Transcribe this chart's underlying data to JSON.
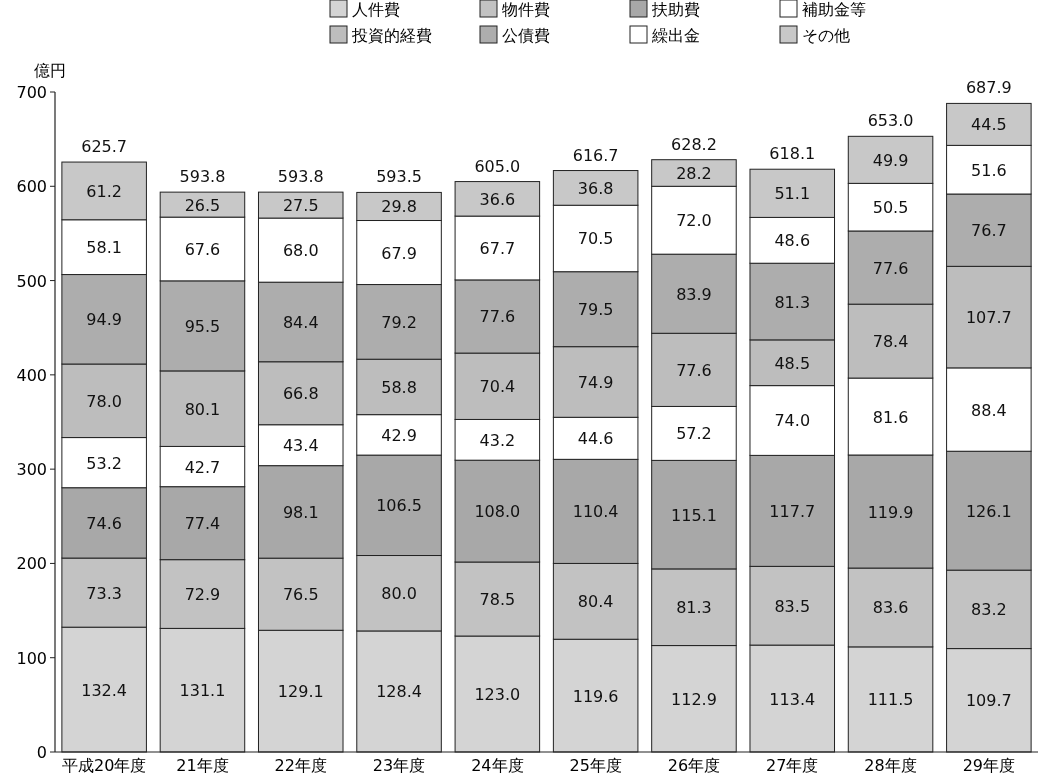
{
  "chart_data": {
    "type": "bar",
    "stacked": true,
    "ylabel": "億円",
    "categories": [
      "平成20年度",
      "21年度",
      "22年度",
      "23年度",
      "24年度",
      "25年度",
      "26年度",
      "27年度",
      "28年度",
      "29年度"
    ],
    "series": [
      {
        "name": "人件費",
        "color": "#d4d4d4",
        "values": [
          132.4,
          131.1,
          129.1,
          128.4,
          123.0,
          119.6,
          112.9,
          113.4,
          111.5,
          109.7
        ],
        "value_labels": [
          "132.4",
          "131.1",
          "129.1",
          "128.4",
          "123.0",
          "119.6",
          "112.9",
          "113.4",
          "111.5",
          "109.7"
        ]
      },
      {
        "name": "物件費",
        "color": "#c2c2c2",
        "values": [
          73.3,
          72.9,
          76.5,
          80.0,
          78.5,
          80.4,
          81.3,
          83.5,
          83.6,
          83.2
        ],
        "value_labels": [
          "73.3",
          "72.9",
          "76.5",
          "80.0",
          "78.5",
          "80.4",
          "81.3",
          "83.5",
          "83.6",
          "83.2"
        ]
      },
      {
        "name": "扶助費",
        "color": "#a8a8a8",
        "values": [
          74.6,
          77.4,
          98.1,
          106.5,
          108.0,
          110.4,
          115.1,
          117.7,
          119.9,
          126.1
        ],
        "value_labels": [
          "74.6",
          "77.4",
          "98.1",
          "106.5",
          "108.0",
          "110.4",
          "115.1",
          "117.7",
          "119.9",
          "126.1"
        ]
      },
      {
        "name": "補助金等",
        "color": "#ffffff",
        "values": [
          53.2,
          42.7,
          43.4,
          42.9,
          43.2,
          44.6,
          57.2,
          74.0,
          81.6,
          88.4
        ],
        "value_labels": [
          "53.2",
          "42.7",
          "43.4",
          "42.9",
          "43.2",
          "44.6",
          "57.2",
          "74.0",
          "81.6",
          "88.4"
        ]
      },
      {
        "name": "投資的経費",
        "color": "#bdbdbd",
        "values": [
          78.0,
          80.1,
          66.8,
          58.8,
          70.4,
          74.9,
          77.6,
          48.5,
          78.4,
          107.7
        ],
        "value_labels": [
          "78.0",
          "80.1",
          "66.8",
          "58.8",
          "70.4",
          "74.9",
          "77.6",
          "48.5",
          "78.4",
          "107.7"
        ]
      },
      {
        "name": "公債費",
        "color": "#adadad",
        "values": [
          94.9,
          95.5,
          84.4,
          79.2,
          77.6,
          79.5,
          83.9,
          81.3,
          77.6,
          76.7
        ],
        "value_labels": [
          "94.9",
          "95.5",
          "84.4",
          "79.2",
          "77.6",
          "79.5",
          "83.9",
          "81.3",
          "77.6",
          "76.7"
        ]
      },
      {
        "name": "繰出金",
        "color": "#ffffff",
        "values": [
          58.1,
          67.6,
          68.0,
          67.9,
          67.7,
          70.5,
          72.0,
          48.6,
          50.5,
          51.6
        ],
        "value_labels": [
          "58.1",
          "67.6",
          "68.0",
          "67.9",
          "67.7",
          "70.5",
          "72.0",
          "48.6",
          "50.5",
          "51.6"
        ]
      },
      {
        "name": "その他",
        "color": "#c8c8c8",
        "values": [
          61.2,
          26.5,
          27.5,
          29.8,
          36.6,
          36.8,
          28.2,
          51.1,
          49.9,
          44.5
        ],
        "value_labels": [
          "61.2",
          "26.5",
          "27.5",
          "29.8",
          "36.6",
          "36.8",
          "28.2",
          "51.1",
          "49.9",
          "44.5"
        ]
      }
    ],
    "totals": [
      "625.7",
      "593.8",
      "593.8",
      "593.5",
      "605.0",
      "616.7",
      "628.2",
      "618.1",
      "653.0",
      "687.9"
    ],
    "ylim": [
      0,
      700
    ],
    "yticks": [
      0,
      100,
      200,
      300,
      400,
      500,
      600,
      700
    ],
    "grid": false,
    "legend": "top"
  }
}
